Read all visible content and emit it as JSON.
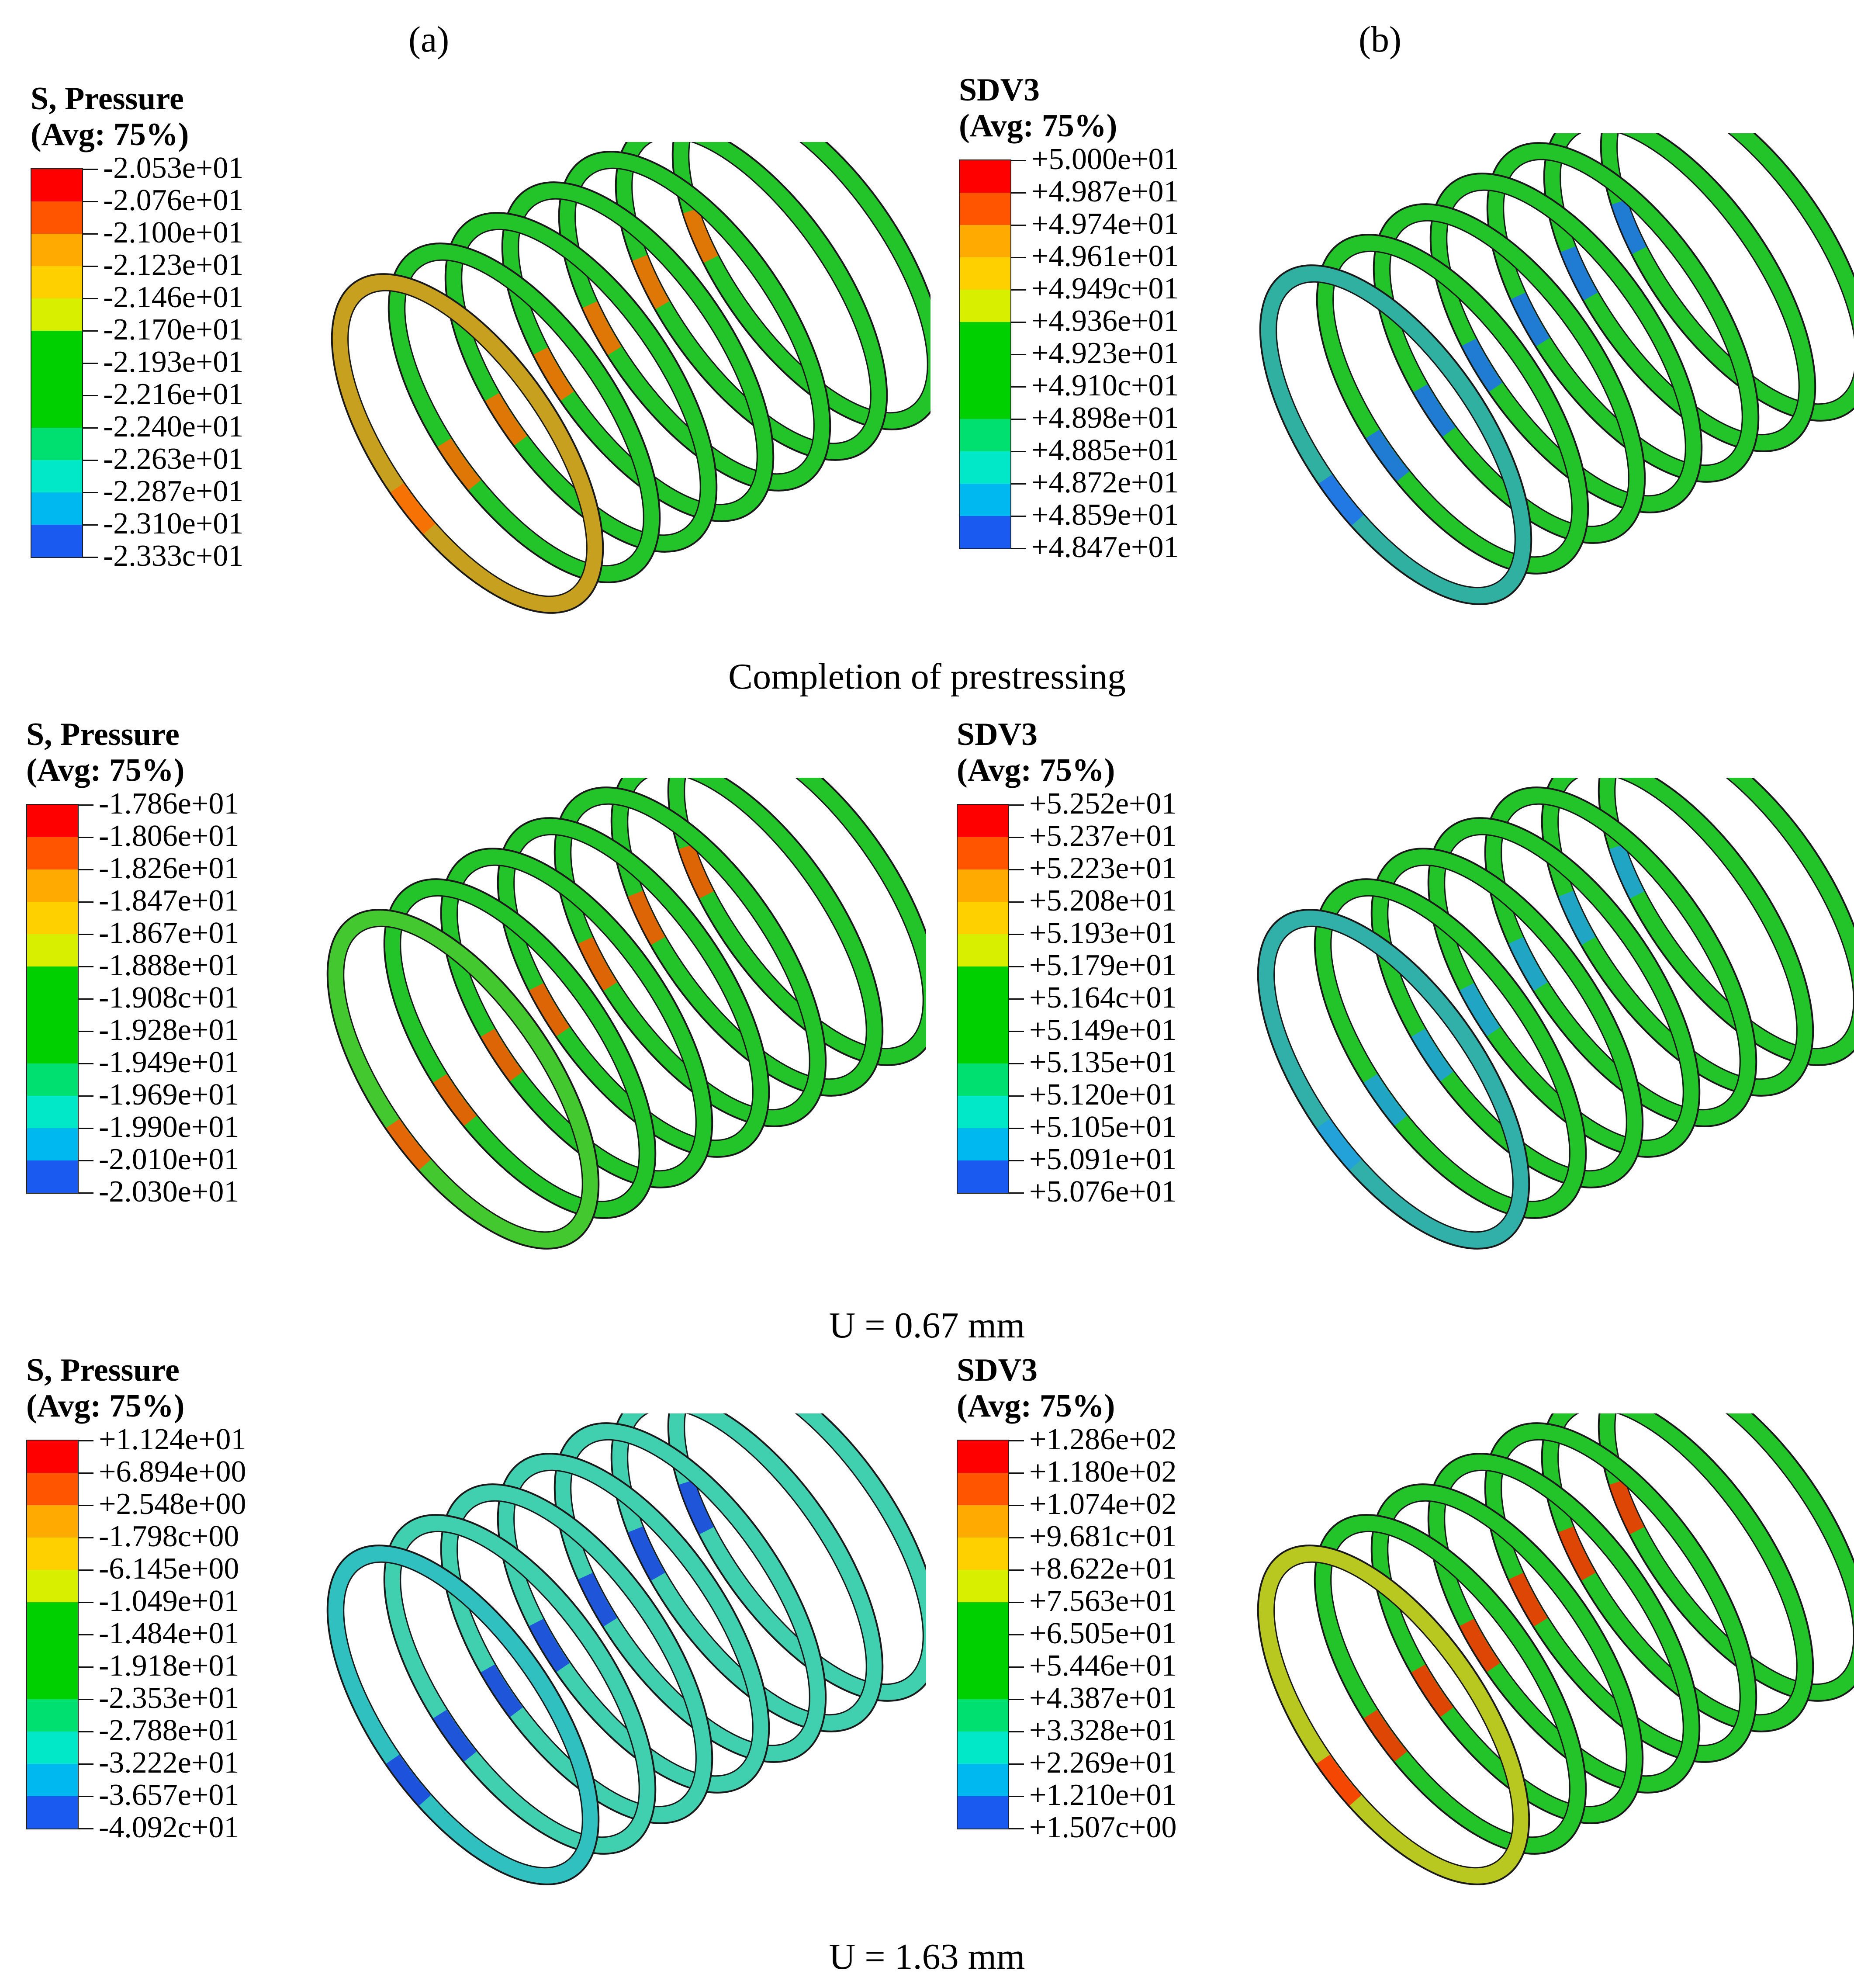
{
  "columns": [
    "(a)",
    "(b)"
  ],
  "captions": [
    "Completion of prestressing",
    "U = 0.67 mm",
    "U = 1.63 mm"
  ],
  "colormap": [
    "#ff0000",
    "#ff5500",
    "#ffaa00",
    "#ffd000",
    "#d8f000",
    "#00d000",
    "#00d000",
    "#00d000",
    "#00e070",
    "#00e8c8",
    "#00b8f0",
    "#1a5af0",
    "#0000ff"
  ],
  "panels": [
    {
      "title1": "S, Pressure",
      "title2": "(Avg: 75%)",
      "ticks": [
        "-2.053e+01",
        "-2.076e+01",
        "-2.100e+01",
        "-2.123e+01",
        "-2.146e+01",
        "-2.170e+01",
        "-2.193e+01",
        "-2.216e+01",
        "-2.240e+01",
        "-2.263e+01",
        "-2.287e+01",
        "-2.310e+01",
        "-2.333c+01"
      ],
      "ring_color": "#22c42a",
      "front_ring_color": "#c8a020",
      "accent_color": "#ff6a00"
    },
    {
      "title1": "SDV3",
      "title2": "(Avg: 75%)",
      "ticks": [
        "+5.000e+01",
        "+4.987e+01",
        "+4.974e+01",
        "+4.961e+01",
        "+4.949c+01",
        "+4.936e+01",
        "+4.923e+01",
        "+4.910c+01",
        "+4.898e+01",
        "+4.885e+01",
        "+4.872e+01",
        "+4.859e+01",
        "+4.847e+01"
      ],
      "ring_color": "#22c42a",
      "front_ring_color": "#2fb0a0",
      "accent_color": "#2070f0"
    },
    {
      "title1": "S, Pressure",
      "title2": "(Avg: 75%)",
      "ticks": [
        "-1.786e+01",
        "-1.806e+01",
        "-1.826e+01",
        "-1.847e+01",
        "-1.867e+01",
        "-1.888e+01",
        "-1.908c+01",
        "-1.928e+01",
        "-1.949e+01",
        "-1.969e+01",
        "-1.990e+01",
        "-2.010e+01",
        "-2.030e+01"
      ],
      "ring_color": "#22c42a",
      "front_ring_color": "#44c830",
      "accent_color": "#ff5500"
    },
    {
      "title1": "SDV3",
      "title2": "(Avg: 75%)",
      "ticks": [
        "+5.252e+01",
        "+5.237e+01",
        "+5.223e+01",
        "+5.208e+01",
        "+5.193e+01",
        "+5.179e+01",
        "+5.164c+01",
        "+5.149e+01",
        "+5.135e+01",
        "+5.120e+01",
        "+5.105e+01",
        "+5.091e+01",
        "+5.076e+01"
      ],
      "ring_color": "#22c42a",
      "front_ring_color": "#30b0a8",
      "accent_color": "#20a0e0"
    },
    {
      "title1": "S, Pressure",
      "title2": "(Avg: 75%)",
      "ticks": [
        "+1.124e+01",
        "+6.894e+00",
        "+2.548e+00",
        "-1.798c+00",
        "-6.145e+00",
        "-1.049e+01",
        "-1.484e+01",
        "-1.918e+01",
        "-2.353e+01",
        "-2.788e+01",
        "-3.222e+01",
        "-3.657e+01",
        "-4.092c+01"
      ],
      "ring_color": "#40d0b0",
      "front_ring_color": "#30c0c0",
      "accent_color": "#1a40e0"
    },
    {
      "title1": "SDV3",
      "title2": "(Avg: 75%)",
      "ticks": [
        "+1.286e+02",
        "+1.180e+02",
        "+1.074e+02",
        "+9.681c+01",
        "+8.622e+01",
        "+7.563e+01",
        "+6.505e+01",
        "+5.446e+01",
        "+4.387e+01",
        "+3.328e+01",
        "+2.269e+01",
        "+1.210e+01",
        "+1.507c+00"
      ],
      "ring_color": "#22c42a",
      "front_ring_color": "#b8c820",
      "accent_color": "#ff3000"
    }
  ]
}
